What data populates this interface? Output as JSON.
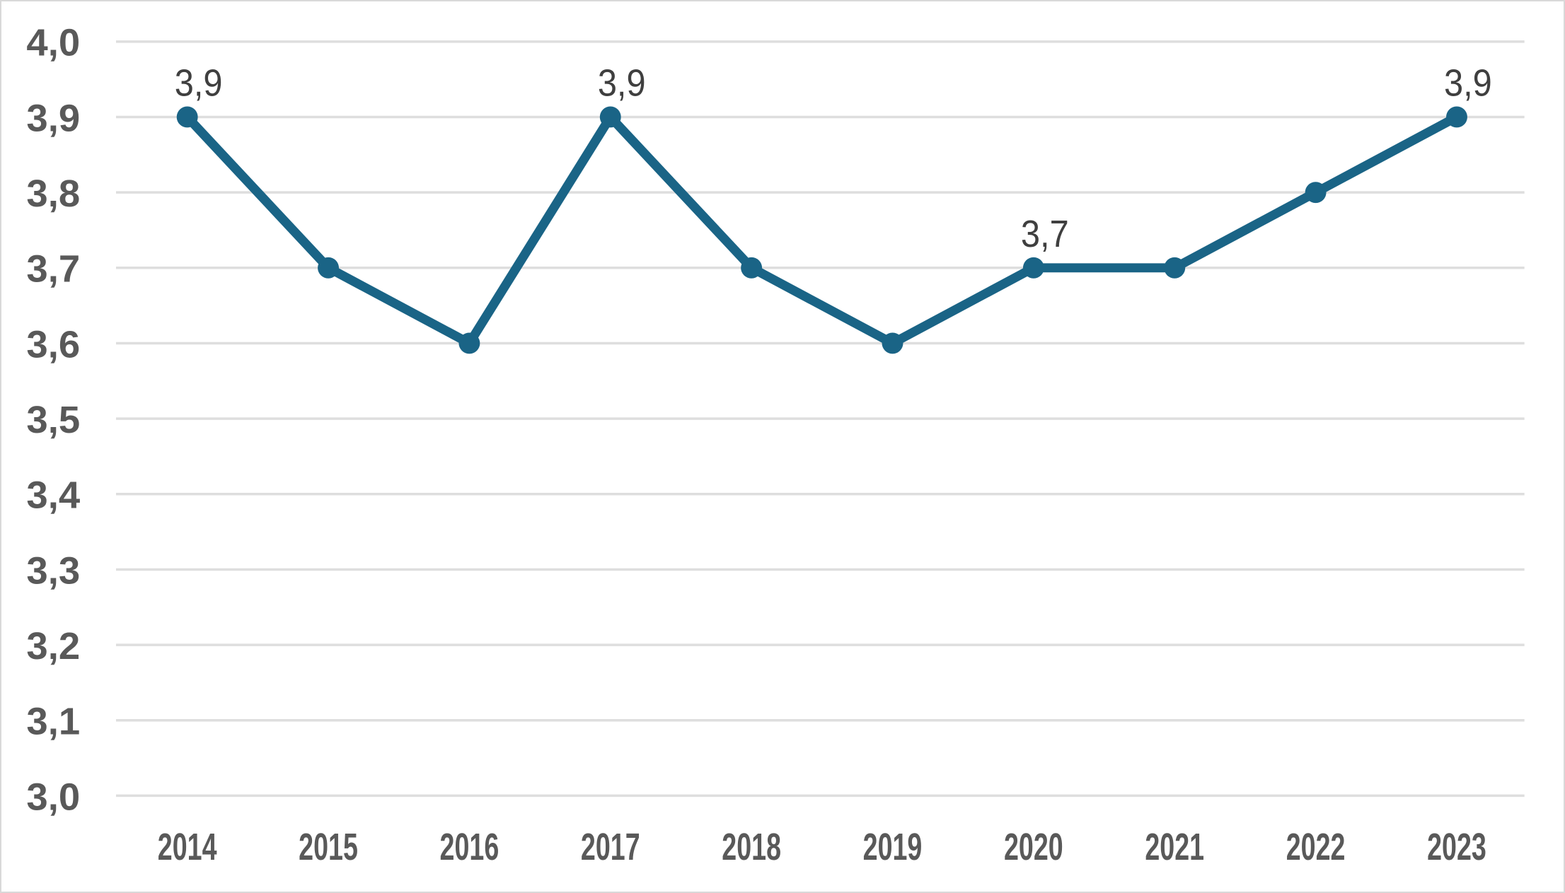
{
  "chart_data": {
    "type": "line",
    "title": "",
    "categories": [
      "2014",
      "2015",
      "2016",
      "2017",
      "2018",
      "2019",
      "2020",
      "2021",
      "2022",
      "2023"
    ],
    "values": [
      3.9,
      3.7,
      3.6,
      3.9,
      3.7,
      3.6,
      3.7,
      3.7,
      3.8,
      3.9
    ],
    "point_labels": [
      "3,9",
      "",
      "",
      "3,9",
      "",
      "",
      "3,7",
      "",
      "",
      "3,9"
    ],
    "xlabel": "",
    "ylabel": "",
    "ylim": [
      3.0,
      4.0
    ],
    "ytick_values": [
      4.0,
      3.9,
      3.8,
      3.7,
      3.6,
      3.5,
      3.4,
      3.3,
      3.2,
      3.1,
      3.0
    ],
    "ytick_labels": [
      "4,0",
      "3,9",
      "3,8",
      "3,7",
      "3,6",
      "3,5",
      "3,4",
      "3,3",
      "3,2",
      "3,1",
      "3,0"
    ],
    "grid": true,
    "legend": "none",
    "decimal_separator": ",",
    "colors": {
      "line": "#1A6486",
      "point": "#1A6486",
      "grid": "#DEDEDE",
      "axis_text": "#595959",
      "data_label_text": "#3F3F3F",
      "background": "#FFFFFF",
      "frame_border": "#D9D9D9"
    }
  }
}
